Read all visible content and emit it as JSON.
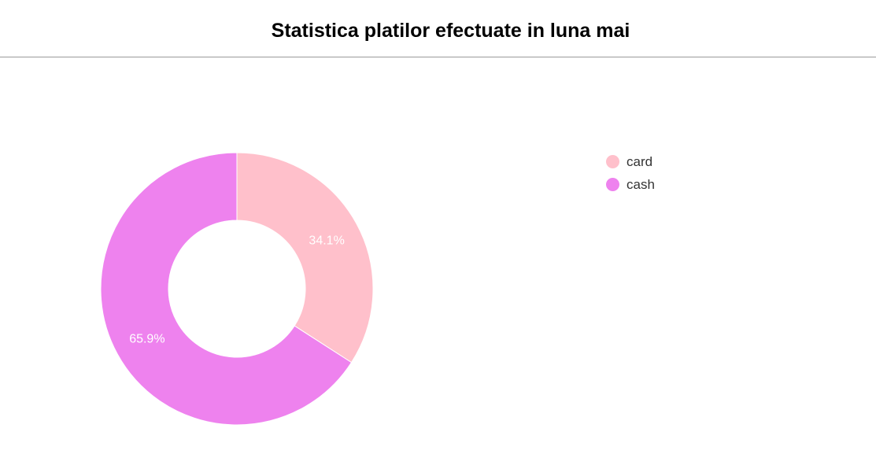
{
  "page": {
    "title": "Statistica platilor efectuate in luna mai"
  },
  "chart_data": {
    "type": "pie",
    "donut": true,
    "categories": [
      "card",
      "cash"
    ],
    "values": [
      34.1,
      65.9
    ],
    "labels": [
      "34.1%",
      "65.9%"
    ],
    "colors": [
      "#ffc0cb",
      "#ee82ee"
    ],
    "legend_position": "top-right"
  }
}
